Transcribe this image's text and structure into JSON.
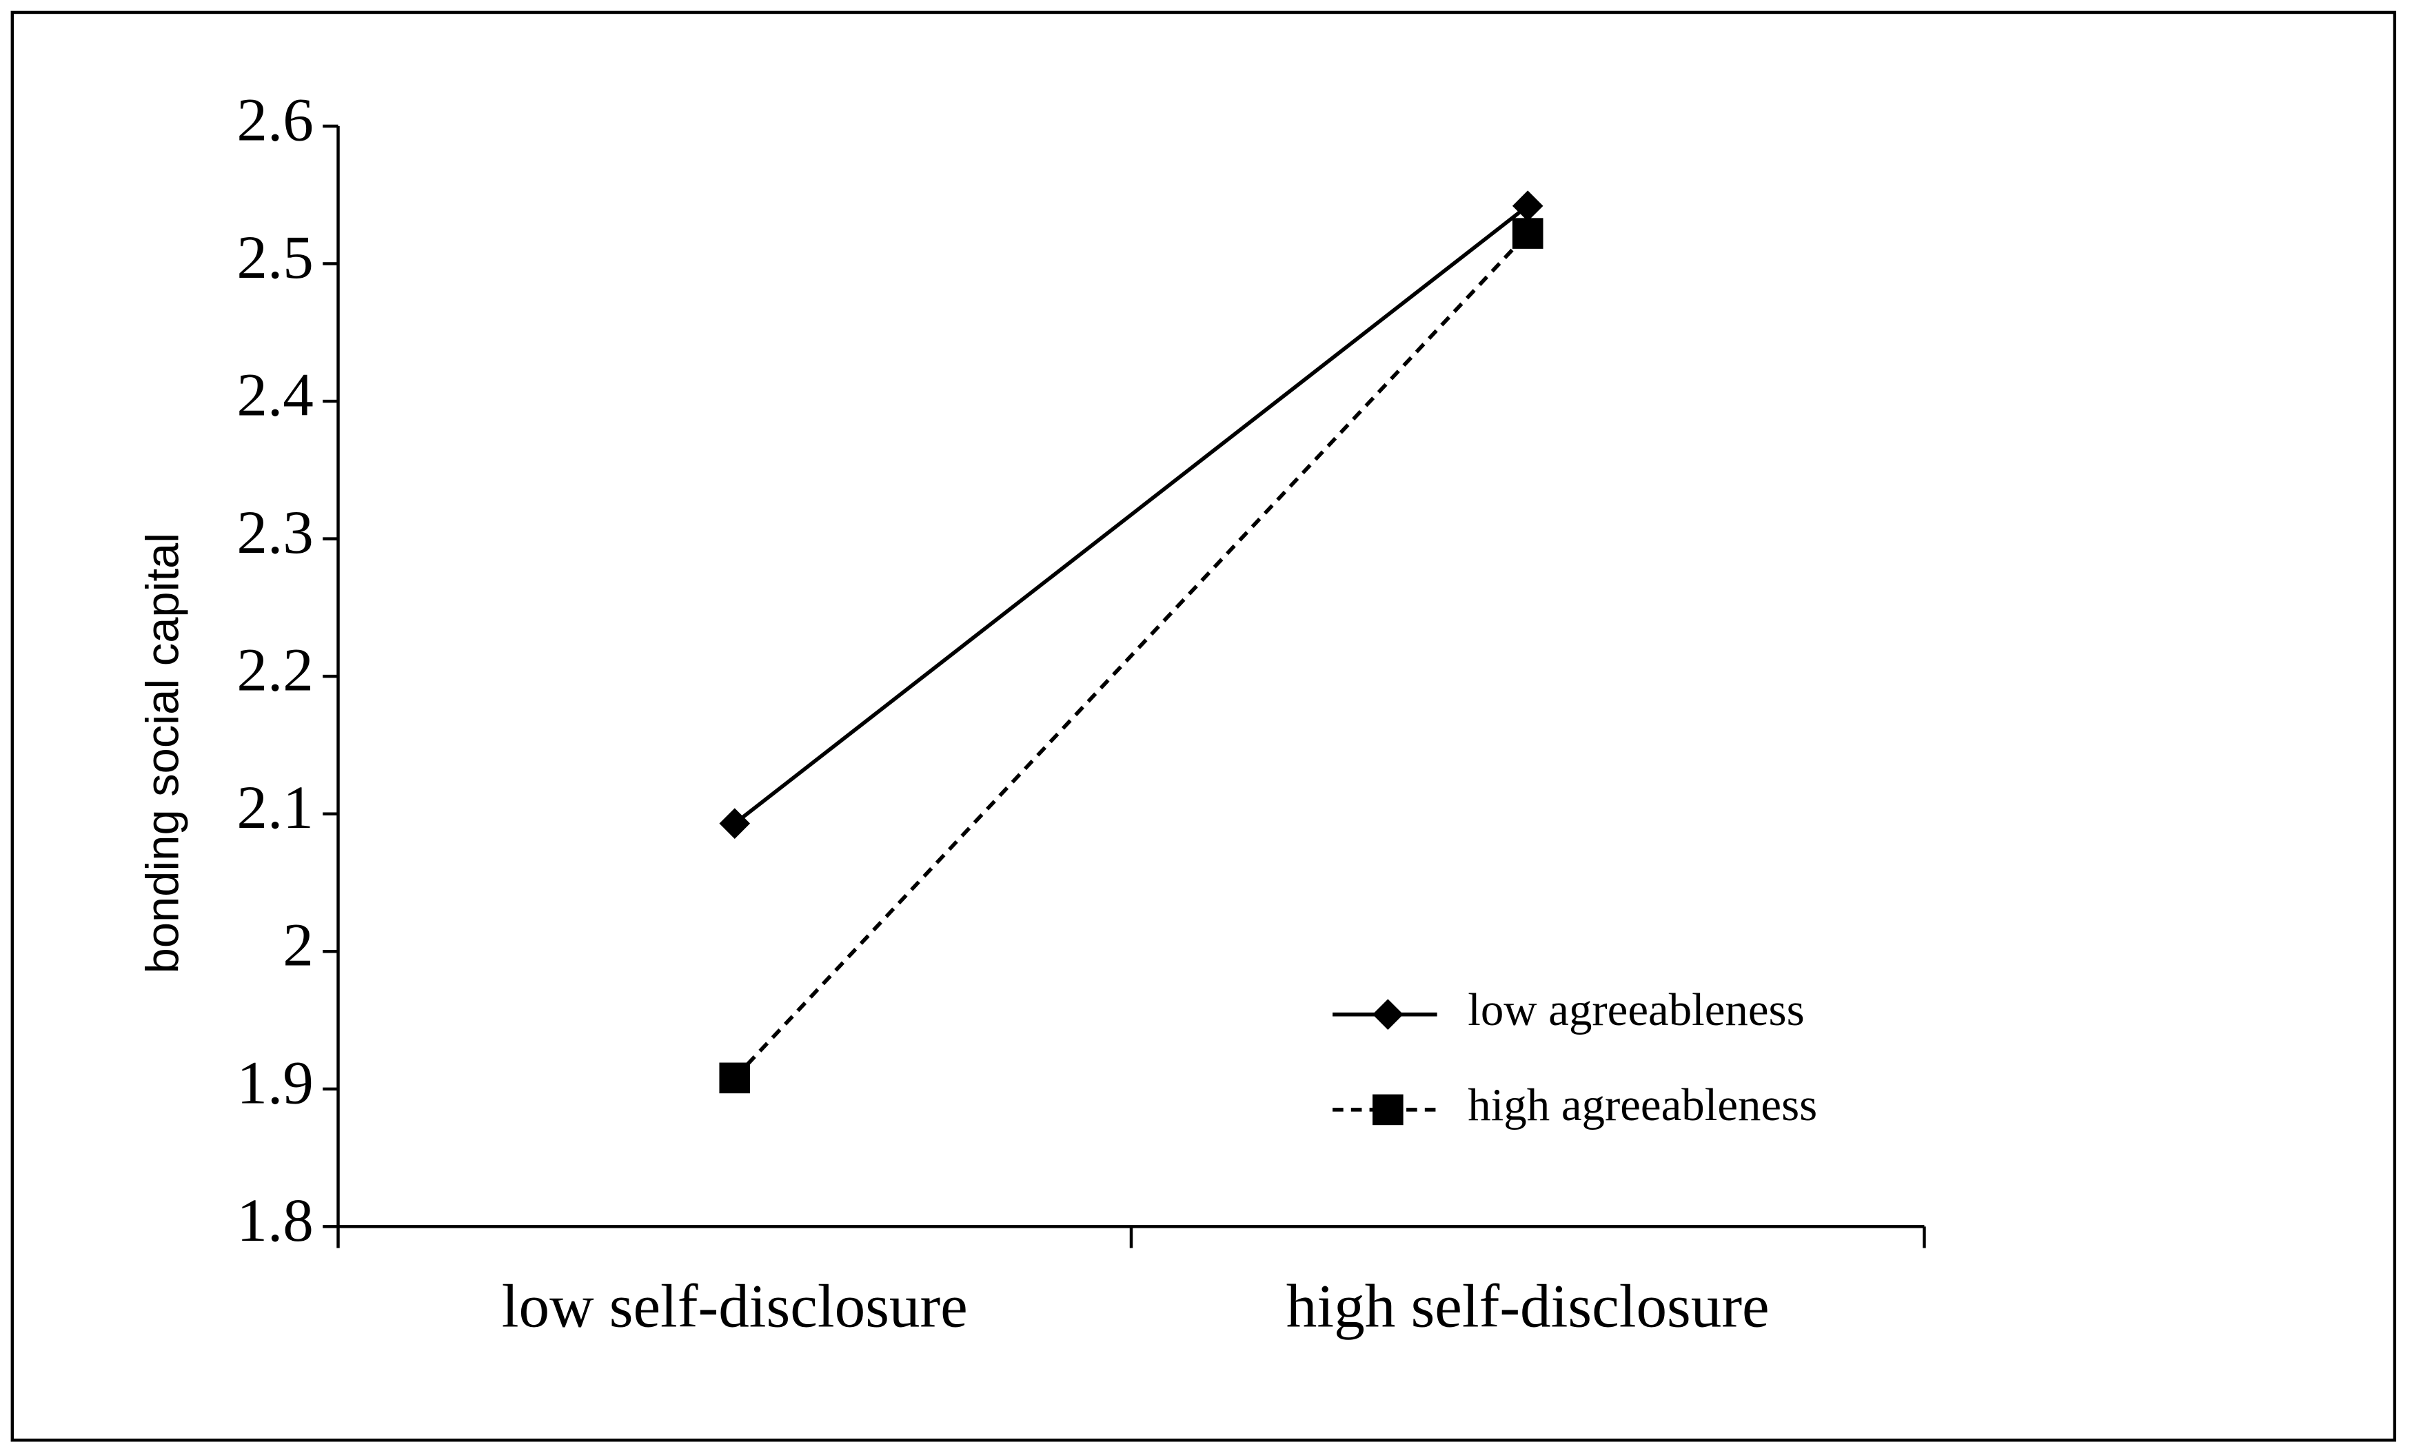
{
  "chart_data": {
    "type": "line",
    "y_label": "bonding social capital",
    "categories": [
      "low self-disclosure",
      "high self-disclosure"
    ],
    "series": [
      {
        "name": "low agreeableness",
        "color": "#000000",
        "dash": "solid",
        "marker": "diamond",
        "values": [
          2.093,
          2.542
        ]
      },
      {
        "name": "high agreeableness",
        "color": "#000000",
        "dash": "dashed",
        "marker": "square",
        "values": [
          1.908,
          2.522
        ]
      }
    ],
    "ylim": [
      1.8,
      2.6
    ],
    "yticks": [
      1.8,
      1.9,
      2,
      2.1,
      2.2,
      2.3,
      2.4,
      2.5,
      2.6
    ],
    "grid": false,
    "legend": "lower right"
  }
}
